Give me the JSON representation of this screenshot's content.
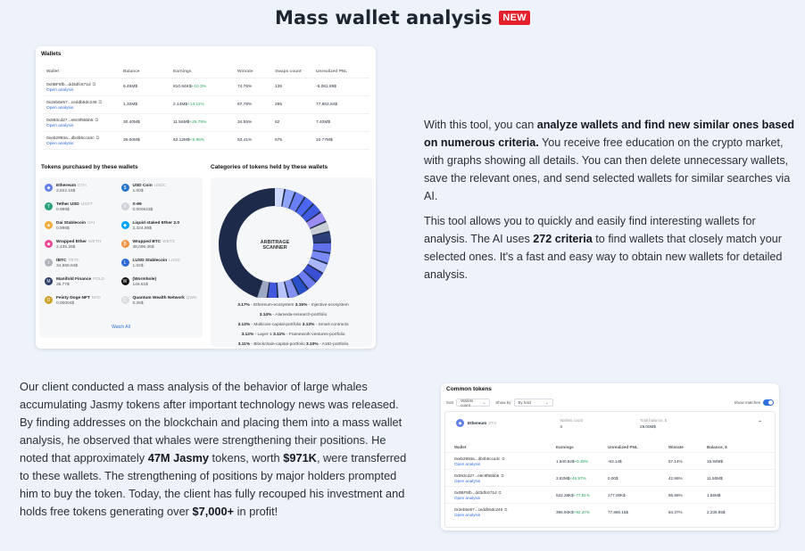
{
  "header": {
    "title": "Mass wallet analysis",
    "badge": "NEW"
  },
  "colors": {
    "accent": "#2f6fe0",
    "badge": "#e5202d",
    "positive": "#22a55a",
    "background": "#eef3fb"
  },
  "wallets_card": {
    "title": "Wallets",
    "columns": [
      "Wallet",
      "Balance",
      "Earnings",
      "Winrate",
      "Swaps count",
      "Unrealized PNL"
    ],
    "open_label": "Open analysis",
    "rows": [
      {
        "address": "0x0BF5fb...dd3dfc671d",
        "balance": "6.46M$",
        "earnings": "810.84K$",
        "earnings_pct": "+10.3%",
        "winrate": "74.76%",
        "swaps": "135",
        "pnl": "-6,081.89$"
      },
      {
        "address": "0x2eb5e57...ceddb5dc246",
        "balance": "1.32M$",
        "earnings": "2.14M$",
        "earnings_pct": "+14.11%",
        "winrate": "67.78%",
        "swaps": "295",
        "pnl": "77,863.84$"
      },
      {
        "address": "0x593cd27...e8c9f55bb5",
        "balance": "30.40M$",
        "earnings": "11.56M$",
        "earnings_pct": "+25.75%",
        "winrate": "34.55%",
        "swaps": "62",
        "pnl": "7.40M$"
      },
      {
        "address": "0xeb2993a...db4b5cca4c",
        "balance": "36.00M$",
        "earnings": "62.12M$",
        "earnings_pct": "+8.95%",
        "winrate": "53.41%",
        "swaps": "675",
        "pnl": "10.77M$"
      }
    ],
    "tokens_title": "Tokens purchased by these wallets",
    "tokens": [
      {
        "name": "Ethereum",
        "symbol": "ETH",
        "amount": "2,822.16$",
        "icon": "ethereum-icon",
        "color": "#627eea",
        "glyph": "◆"
      },
      {
        "name": "USD Coin",
        "symbol": "USDC",
        "amount": "1.00$",
        "icon": "usdc-icon",
        "color": "#2775ca",
        "glyph": "$"
      },
      {
        "name": "Tether USD",
        "symbol": "USDT",
        "amount": "0.998$",
        "icon": "tether-icon",
        "color": "#26a17b",
        "glyph": "T"
      },
      {
        "name": "X-99",
        "symbol": "",
        "amount": "0.000543$",
        "icon": "x99-icon",
        "color": "#cfd3d8",
        "glyph": "X"
      },
      {
        "name": "Dai Stablecoin",
        "symbol": "DAI",
        "amount": "0.998$",
        "icon": "dai-icon",
        "color": "#f5ac37",
        "glyph": "◈"
      },
      {
        "name": "Liquid staked Ether 2.0",
        "symbol": "",
        "amount": "2,324.89$",
        "icon": "steth-icon",
        "color": "#00a3ff",
        "glyph": "◆"
      },
      {
        "name": "Wrapped Ether",
        "symbol": "WETH",
        "amount": "2,435.26$",
        "icon": "weth-icon",
        "color": "#ec4899",
        "glyph": "◆"
      },
      {
        "name": "Wrapped BTC",
        "symbol": "WBTC",
        "amount": "38,096.36$",
        "icon": "wbtc-icon",
        "color": "#f09242",
        "glyph": "₿"
      },
      {
        "name": "tBTC",
        "symbol": "TBTC",
        "amount": "34,859.94$",
        "icon": "tbtc-icon",
        "color": "#b0b4ba",
        "glyph": "t"
      },
      {
        "name": "LUSD Stablecoin",
        "symbol": "LUSD",
        "amount": "1.02$",
        "icon": "lusd-icon",
        "color": "#2d6ad6",
        "glyph": "L"
      },
      {
        "name": "Manifold Finance",
        "symbol": "FOLD",
        "amount": "35.77$",
        "icon": "manifold-icon",
        "color": "#2b3a67",
        "glyph": "M"
      },
      {
        "name": "(Wormhole)",
        "symbol": "",
        "amount": "146.61$",
        "icon": "wormhole-icon",
        "color": "#111111",
        "glyph": "W"
      },
      {
        "name": "Feisty Doge NFT",
        "symbol": "NFD",
        "amount": "0.00004$",
        "icon": "doge-icon",
        "color": "#c9a227",
        "glyph": "D"
      },
      {
        "name": "Quantum Wealth Network",
        "symbol": "QWN",
        "amount": "5.26$",
        "icon": "qwn-icon",
        "color": "#d9dce0",
        "glyph": "Q"
      }
    ],
    "watch_all": "Watch All",
    "categories_title": "Categories of tokens held by these wallets",
    "chart_logo": "ARBITRAGE SCANNER",
    "categories": [
      {
        "pct": "3.17%",
        "label": "Ethereum-ecosystem"
      },
      {
        "pct": "3.15%",
        "label": "Injective-ecosystem"
      },
      {
        "pct": "3.14%",
        "label": "Alameda-research-portfolio"
      },
      {
        "pct": "3.13%",
        "label": "Multicoin-capital-portfolio"
      },
      {
        "pct": "3.13%",
        "label": "Smart-contracts"
      },
      {
        "pct": "3.12%",
        "label": "Layer-1"
      },
      {
        "pct": "3.11%",
        "label": "Framework-ventures-portfolio"
      },
      {
        "pct": "3.11%",
        "label": "Blockchain-capital-portfolio"
      },
      {
        "pct": "3.10%",
        "label": "A16z-portfolio"
      }
    ]
  },
  "paragraph1": {
    "t1": "With this tool, you can ",
    "b1": "analyze wallets and find new similar ones based on numerous criteria.",
    "t2": " You receive free education on the crypto market, with graphs showing all details. You can then delete unnecessary wallets, save the relevant ones, and send selected wallets for similar searches via AI."
  },
  "paragraph2": {
    "t1": "This tool allows you to quickly and easily find interesting wallets for analysis. The AI uses ",
    "b1": "272 criteria",
    "t2": " to find wallets that closely match your selected ones. It's a fast and easy way to obtain new wallets for detailed analysis."
  },
  "paragraph3": {
    "t1": "Our client conducted a mass analysis of the behavior of large whales accumulating Jasmy tokens after important technology news was released. By finding addresses on the blockchain and placing them into a mass wallet analysis, he observed that whales were strengthening their positions. He noted that approximately ",
    "b1": "47M Jasmy",
    "t2": " tokens, worth ",
    "b2": "$971K",
    "t3": ", were transferred to these wallets. The strengthening of positions by major holders prompted him to buy the token. Today, the client has fully recouped his investment and holds free tokens generating over ",
    "b3": "$7,000+",
    "t4": " in profit!"
  },
  "common_tokens": {
    "title": "Common tokens",
    "sort_label": "Sort",
    "sort_value": "Wallets count",
    "show_by_label": "Show by",
    "show_by_value": "By hold",
    "show_matches": "Show matches",
    "token": "Ethereum",
    "token_symbol": "ETH",
    "wallets_count_label": "Wallets count",
    "wallets_count": "4",
    "total_balance_label": "Total balance, $",
    "total_balance": "29.00M$",
    "columns": [
      "Wallet",
      "Earnings",
      "Unrealized PNL",
      "Winrate",
      "Balance, $"
    ],
    "open_label": "Open analysis",
    "rows": [
      {
        "address": "0xeb2993a...db4b5cca4c",
        "earnings": "1,940.82$",
        "earnings_pct": "+0.35%",
        "pnl": "-63.14$",
        "winrate": "57.14%",
        "balance": "15.94M$"
      },
      {
        "address": "0x593cd27...e8c9f55bb5",
        "earnings": "3.82M$",
        "earnings_pct": "+46.97%",
        "pnl": "0.00$",
        "winrate": "42.86%",
        "balance": "11.50M$"
      },
      {
        "address": "0x0BF5fb...dd3dfc671d",
        "earnings": "522.28K$",
        "earnings_pct": "+77.81%",
        "pnl": "177.00K$",
        "winrate": "86.96%",
        "balance": "1.55M$"
      },
      {
        "address": "0x2eb5e57...ceddb5dc246",
        "earnings": "396.94K$",
        "earnings_pct": "+92.37%",
        "pnl": "77,866.15$",
        "winrate": "84.37%",
        "balance": "2,235.95$"
      }
    ]
  }
}
